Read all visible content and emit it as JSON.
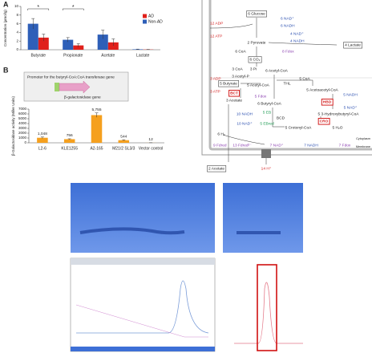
{
  "chart_data": [
    {
      "type": "bar",
      "panel": "A",
      "y_label": "Concentration (µmol/g)",
      "categories": [
        "Butyrate",
        "Propionate",
        "Acetate",
        "Lactate"
      ],
      "series": [
        {
          "name": "AD",
          "color": "#e0201b",
          "values": [
            2.8,
            1.0,
            1.7,
            0.05
          ],
          "errors": [
            0.8,
            0.4,
            0.8,
            0.03
          ]
        },
        {
          "name": "Non-AD",
          "color": "#2e5fb8",
          "values": [
            6.0,
            2.3,
            3.5,
            0.1
          ],
          "errors": [
            1.2,
            0.5,
            1.0,
            0.05
          ]
        }
      ],
      "annotations": [
        "*",
        "*"
      ],
      "ylim": [
        0,
        10
      ],
      "yticks": [
        0,
        2,
        4,
        6,
        8,
        10
      ],
      "legend": "right"
    },
    {
      "type": "bar",
      "panel": "B",
      "y_label": "β-Galactosidase activity (Miller Units)",
      "categories": [
        "L2-6",
        "KLE1255",
        "A2-165",
        "M21/2 SL3/3",
        "Vector control"
      ],
      "values": [
        1048,
        756,
        5755,
        544,
        12
      ],
      "value_labels": [
        "1,048",
        "756",
        "5,755",
        "544",
        "12"
      ],
      "errors": [
        150,
        80,
        450,
        90,
        5
      ],
      "color": "#f5a01e",
      "annotations": [
        "Promoter for the butyryl-CoA:CoA transferase gene",
        "β-galactosidase gene"
      ],
      "ylim": [
        0,
        7000
      ],
      "yticks": [
        0,
        1000,
        2000,
        3000,
        4000,
        5000,
        6000,
        7000
      ]
    }
  ],
  "diagram": {
    "labels": [
      "6 Glucose",
      "12 ADP",
      "12 ATP",
      "6 NAD⁺",
      "6 NADH",
      "4 NAD⁺",
      "4 NADH",
      "2 Pyruvate",
      "4 Lactate",
      "6 CoA",
      "8 Fdox",
      "6 CO₂",
      "6 Acetyl-CoA",
      "3 ADP",
      "3 ATP",
      "3 CoA",
      "3 Pi",
      "3 Acetyl-P",
      "5 Butyrate",
      "5 Acetyl-CoA",
      "THL",
      "5 CoA",
      "5 Acetoacetyl-CoA",
      "BCT",
      "3 Acetate",
      "5 Fdox",
      "6 Butyryl-CoA",
      "5 NADH",
      "HBD",
      "5 NAD⁺",
      "10 NADH",
      "5 EB",
      "BCD",
      "10 NAD⁺",
      "5 EBred",
      "5 3-Hydroxybutyryl-CoA",
      "CRO",
      "5 Crotonyl-CoA",
      "5 H₂O",
      "6 H₂",
      "9 Fdred",
      "13 Fdred²⁻",
      "7 NAD⁺",
      "7 NADH",
      "7 Fdox",
      "Cytoplasm",
      "Membrane",
      "2 Acetate",
      "14 H⁺"
    ]
  }
}
